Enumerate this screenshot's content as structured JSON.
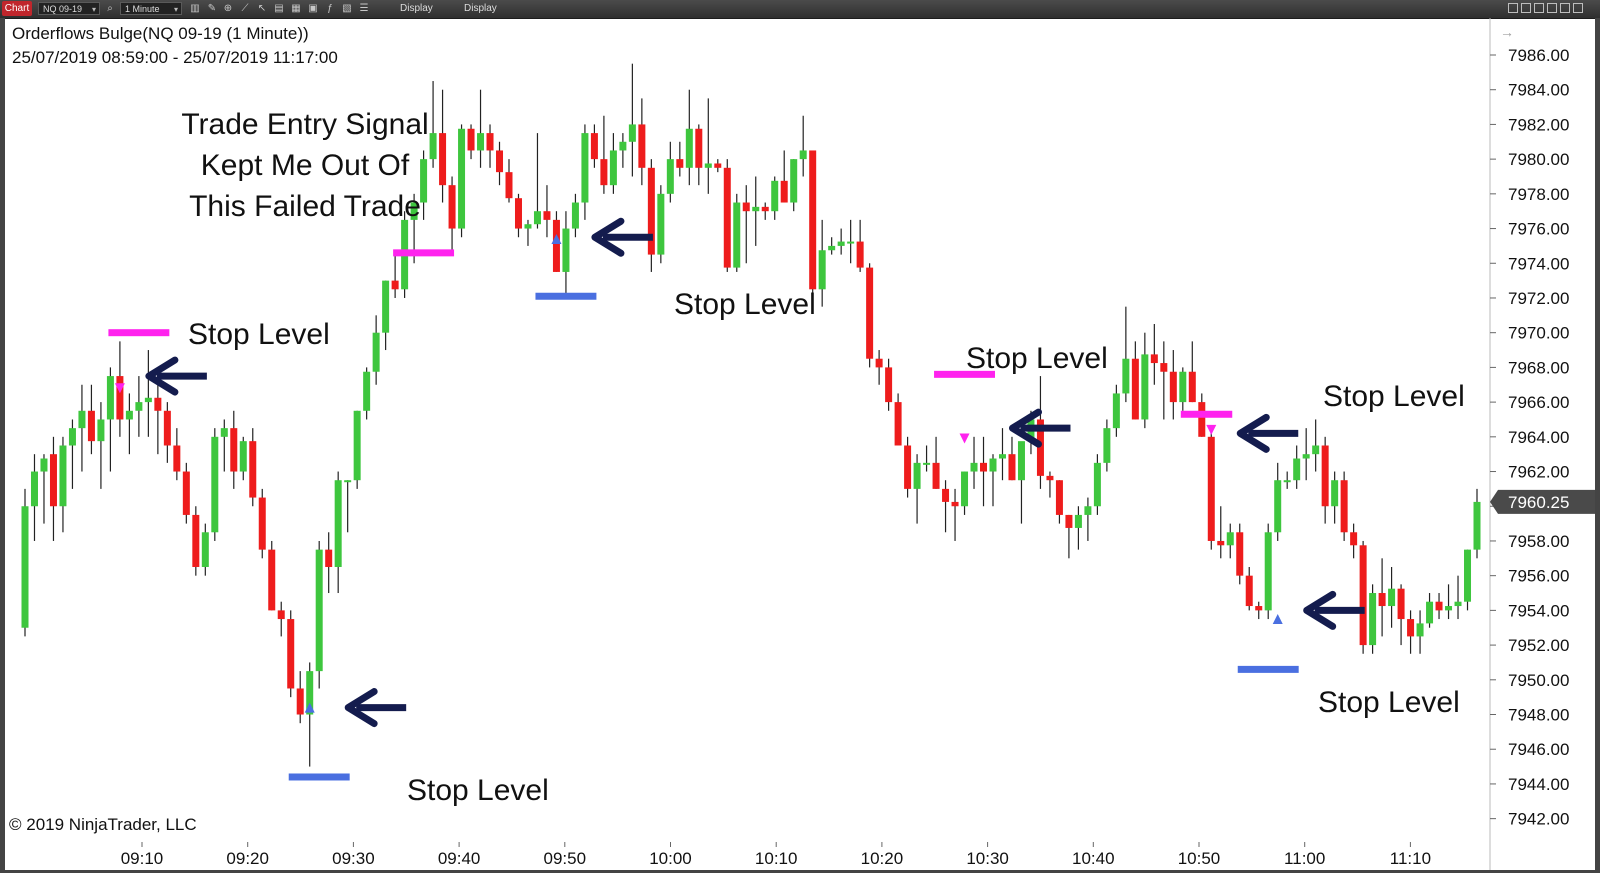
{
  "toolbar": {
    "chart_tab": "Chart",
    "instrument": "NQ 09-19",
    "interval": "1 Minute",
    "display1": "Display",
    "display2": "Display",
    "icons": [
      "search-icon",
      "bar-style-icon",
      "zoom-icon",
      "draw-icon",
      "pointer-icon",
      "cursor-icon",
      "data-box-icon",
      "strategy-icon",
      "indicator-icon",
      "properties-icon",
      "list-icon"
    ]
  },
  "chart": {
    "title": "Orderflows Bulge(NQ 09-19 (1 Minute))",
    "date_range": "25/07/2019 08:59:00 - 25/07/2019 11:17:00",
    "copyright": "© 2019 NinjaTrader, LLC",
    "annotation_lines": [
      "Trade Entry Signal",
      "Kept Me Out Of",
      "This Failed Trade"
    ],
    "last_price": "7960.25",
    "colors": {
      "up": "#3ec63e",
      "down": "#ee1c1c",
      "sell_signal": "#ff22ee",
      "buy_signal": "#4a6fe0",
      "arrow": "#141c4e",
      "price_box": "#4a4a4a"
    },
    "stop_labels": [
      {
        "id": "a",
        "text": "Stop Level"
      },
      {
        "id": "b",
        "text": "Stop Level"
      },
      {
        "id": "c",
        "text": "Stop Level"
      },
      {
        "id": "d",
        "text": "Stop Level"
      },
      {
        "id": "e",
        "text": "Stop Level"
      },
      {
        "id": "f",
        "text": "Stop Level"
      }
    ]
  },
  "chart_data": {
    "type": "candlestick",
    "ylim": [
      7942,
      7987
    ],
    "y_ticks": [
      "7986.00",
      "7984.00",
      "7982.00",
      "7980.00",
      "7978.00",
      "7976.00",
      "7974.00",
      "7972.00",
      "7970.00",
      "7968.00",
      "7966.00",
      "7964.00",
      "7962.00",
      "7960.00",
      "7958.00",
      "7956.00",
      "7954.00",
      "7952.00",
      "7950.00",
      "7948.00",
      "7946.00",
      "7944.00",
      "7942.00"
    ],
    "x_ticks": [
      "09:10",
      "09:20",
      "09:30",
      "09:40",
      "09:50",
      "10:00",
      "10:10",
      "10:20",
      "10:30",
      "10:40",
      "10:50",
      "11:00",
      "11:10"
    ],
    "candles": [
      {
        "o": 7953,
        "h": 7961,
        "l": 7952.5,
        "c": 7960
      },
      {
        "o": 7960,
        "h": 7963,
        "l": 7958,
        "c": 7962
      },
      {
        "o": 7962,
        "h": 7963,
        "l": 7959,
        "c": 7962.75
      },
      {
        "o": 7963,
        "h": 7964,
        "l": 7958,
        "c": 7960
      },
      {
        "o": 7960,
        "h": 7964,
        "l": 7958.5,
        "c": 7963.5
      },
      {
        "o": 7963.5,
        "h": 7965,
        "l": 7961,
        "c": 7964.5
      },
      {
        "o": 7964.5,
        "h": 7967,
        "l": 7962,
        "c": 7965.5
      },
      {
        "o": 7965.5,
        "h": 7967,
        "l": 7963,
        "c": 7963.75
      },
      {
        "o": 7963.75,
        "h": 7966,
        "l": 7961,
        "c": 7965
      },
      {
        "o": 7965,
        "h": 7968,
        "l": 7962,
        "c": 7967.5
      },
      {
        "o": 7967.5,
        "h": 7969.5,
        "l": 7964,
        "c": 7965
      },
      {
        "o": 7965,
        "h": 7966.5,
        "l": 7963,
        "c": 7965.5
      },
      {
        "o": 7965.5,
        "h": 7967.5,
        "l": 7964,
        "c": 7966
      },
      {
        "o": 7966,
        "h": 7969,
        "l": 7964,
        "c": 7966.25
      },
      {
        "o": 7966.25,
        "h": 7967.5,
        "l": 7963,
        "c": 7965.5
      },
      {
        "o": 7965.5,
        "h": 7966,
        "l": 7962.5,
        "c": 7963.5
      },
      {
        "o": 7963.5,
        "h": 7964.5,
        "l": 7961.5,
        "c": 7962
      },
      {
        "o": 7962,
        "h": 7962.5,
        "l": 7959,
        "c": 7959.5
      },
      {
        "o": 7959.5,
        "h": 7960,
        "l": 7956,
        "c": 7956.5
      },
      {
        "o": 7956.5,
        "h": 7959,
        "l": 7956,
        "c": 7958.5
      },
      {
        "o": 7958.5,
        "h": 7964.5,
        "l": 7958,
        "c": 7964
      },
      {
        "o": 7964,
        "h": 7965,
        "l": 7962,
        "c": 7964.5
      },
      {
        "o": 7964.5,
        "h": 7965.5,
        "l": 7961,
        "c": 7962
      },
      {
        "o": 7962,
        "h": 7964,
        "l": 7961.5,
        "c": 7963.75
      },
      {
        "o": 7963.75,
        "h": 7964.5,
        "l": 7960,
        "c": 7960.5
      },
      {
        "o": 7960.5,
        "h": 7961,
        "l": 7957,
        "c": 7957.5
      },
      {
        "o": 7957.5,
        "h": 7958,
        "l": 7954,
        "c": 7954
      },
      {
        "o": 7954,
        "h": 7954.5,
        "l": 7952.5,
        "c": 7953.5
      },
      {
        "o": 7953.5,
        "h": 7954,
        "l": 7949,
        "c": 7949.5
      },
      {
        "o": 7949.5,
        "h": 7950.5,
        "l": 7947.5,
        "c": 7948
      },
      {
        "o": 7948,
        "h": 7951,
        "l": 7945,
        "c": 7950.5
      },
      {
        "o": 7950.5,
        "h": 7958,
        "l": 7949.5,
        "c": 7957.5
      },
      {
        "o": 7957.5,
        "h": 7958.5,
        "l": 7955,
        "c": 7956.5
      },
      {
        "o": 7956.5,
        "h": 7962,
        "l": 7955,
        "c": 7961.5
      },
      {
        "o": 7961.5,
        "h": 7961.5,
        "l": 7958.5,
        "c": 7961.5
      },
      {
        "o": 7961.5,
        "h": 7965.5,
        "l": 7961,
        "c": 7965.5
      },
      {
        "o": 7965.5,
        "h": 7968,
        "l": 7965,
        "c": 7967.75
      },
      {
        "o": 7967.75,
        "h": 7971,
        "l": 7967,
        "c": 7970
      },
      {
        "o": 7970,
        "h": 7973,
        "l": 7969,
        "c": 7973
      },
      {
        "o": 7973,
        "h": 7974.5,
        "l": 7972,
        "c": 7972.5
      },
      {
        "o": 7972.5,
        "h": 7977,
        "l": 7972,
        "c": 7976.5
      },
      {
        "o": 7976.5,
        "h": 7978,
        "l": 7974,
        "c": 7977.5
      },
      {
        "o": 7977.5,
        "h": 7980.5,
        "l": 7976.5,
        "c": 7980
      },
      {
        "o": 7980,
        "h": 7984.5,
        "l": 7979.5,
        "c": 7981.5
      },
      {
        "o": 7981.5,
        "h": 7984,
        "l": 7977.5,
        "c": 7978.5
      },
      {
        "o": 7978.5,
        "h": 7979,
        "l": 7974.5,
        "c": 7976
      },
      {
        "o": 7976,
        "h": 7982,
        "l": 7975.5,
        "c": 7981.75
      },
      {
        "o": 7981.75,
        "h": 7982,
        "l": 7980,
        "c": 7980.5
      },
      {
        "o": 7980.5,
        "h": 7984,
        "l": 7979.5,
        "c": 7981.5
      },
      {
        "o": 7981.5,
        "h": 7982,
        "l": 7979.5,
        "c": 7980.5
      },
      {
        "o": 7980.5,
        "h": 7981,
        "l": 7978.5,
        "c": 7979.25
      },
      {
        "o": 7979.25,
        "h": 7980,
        "l": 7977.5,
        "c": 7977.75
      },
      {
        "o": 7977.75,
        "h": 7978,
        "l": 7975.5,
        "c": 7976
      },
      {
        "o": 7976,
        "h": 7976.5,
        "l": 7975,
        "c": 7976.25
      },
      {
        "o": 7976.25,
        "h": 7981.5,
        "l": 7976,
        "c": 7977
      },
      {
        "o": 7977,
        "h": 7978.5,
        "l": 7975.5,
        "c": 7976.5
      },
      {
        "o": 7976.5,
        "h": 7977,
        "l": 7973.5,
        "c": 7973.5
      },
      {
        "o": 7973.5,
        "h": 7977,
        "l": 7972,
        "c": 7976
      },
      {
        "o": 7976,
        "h": 7978,
        "l": 7975.5,
        "c": 7977.5
      },
      {
        "o": 7977.5,
        "h": 7982,
        "l": 7976.5,
        "c": 7981.5
      },
      {
        "o": 7981.5,
        "h": 7982,
        "l": 7979.5,
        "c": 7980
      },
      {
        "o": 7980,
        "h": 7982.5,
        "l": 7978,
        "c": 7978.5
      },
      {
        "o": 7978.5,
        "h": 7981.5,
        "l": 7978,
        "c": 7980.5
      },
      {
        "o": 7980.5,
        "h": 7981.5,
        "l": 7979.5,
        "c": 7981
      },
      {
        "o": 7981,
        "h": 7985.5,
        "l": 7979,
        "c": 7982
      },
      {
        "o": 7982,
        "h": 7983.5,
        "l": 7978.5,
        "c": 7979.5
      },
      {
        "o": 7979.5,
        "h": 7980,
        "l": 7973.5,
        "c": 7974.5
      },
      {
        "o": 7974.5,
        "h": 7978.5,
        "l": 7974,
        "c": 7978
      },
      {
        "o": 7978,
        "h": 7981,
        "l": 7977.5,
        "c": 7980
      },
      {
        "o": 7980,
        "h": 7981,
        "l": 7979,
        "c": 7979.5
      },
      {
        "o": 7979.5,
        "h": 7984,
        "l": 7978.5,
        "c": 7981.75
      },
      {
        "o": 7981.75,
        "h": 7982,
        "l": 7978.5,
        "c": 7979.5
      },
      {
        "o": 7979.5,
        "h": 7983.5,
        "l": 7978,
        "c": 7979.75
      },
      {
        "o": 7979.75,
        "h": 7980,
        "l": 7979.25,
        "c": 7979.5
      },
      {
        "o": 7979.5,
        "h": 7980,
        "l": 7973.5,
        "c": 7973.75
      },
      {
        "o": 7973.75,
        "h": 7978,
        "l": 7973.5,
        "c": 7977.5
      },
      {
        "o": 7977.5,
        "h": 7978.5,
        "l": 7974,
        "c": 7977
      },
      {
        "o": 7977,
        "h": 7979,
        "l": 7975,
        "c": 7977.25
      },
      {
        "o": 7977.25,
        "h": 7977.5,
        "l": 7976.5,
        "c": 7977
      },
      {
        "o": 7977,
        "h": 7979,
        "l": 7976.5,
        "c": 7978.75
      },
      {
        "o": 7978.75,
        "h": 7980.5,
        "l": 7977.5,
        "c": 7977.5
      },
      {
        "o": 7977.5,
        "h": 7980,
        "l": 7977,
        "c": 7980
      },
      {
        "o": 7980,
        "h": 7982.5,
        "l": 7979,
        "c": 7980.5
      },
      {
        "o": 7980.5,
        "h": 7980.5,
        "l": 7972,
        "c": 7972.5
      },
      {
        "o": 7972.5,
        "h": 7976.5,
        "l": 7971.5,
        "c": 7974.75
      },
      {
        "o": 7974.75,
        "h": 7975.5,
        "l": 7974.5,
        "c": 7975
      },
      {
        "o": 7975,
        "h": 7976,
        "l": 7974.5,
        "c": 7975.25
      },
      {
        "o": 7975.25,
        "h": 7976.5,
        "l": 7974,
        "c": 7975.25
      },
      {
        "o": 7975.25,
        "h": 7976.5,
        "l": 7973.5,
        "c": 7973.75
      },
      {
        "o": 7973.75,
        "h": 7974,
        "l": 7968,
        "c": 7968.5
      },
      {
        "o": 7968.5,
        "h": 7969,
        "l": 7967,
        "c": 7968
      },
      {
        "o": 7968,
        "h": 7968.5,
        "l": 7965.5,
        "c": 7966
      },
      {
        "o": 7966,
        "h": 7966.5,
        "l": 7963.5,
        "c": 7963.5
      },
      {
        "o": 7963.5,
        "h": 7964,
        "l": 7960.5,
        "c": 7961
      },
      {
        "o": 7961,
        "h": 7963,
        "l": 7959,
        "c": 7962.5
      },
      {
        "o": 7962.5,
        "h": 7963.5,
        "l": 7962,
        "c": 7962.5
      },
      {
        "o": 7962.5,
        "h": 7964,
        "l": 7961,
        "c": 7961
      },
      {
        "o": 7961,
        "h": 7961.5,
        "l": 7958.5,
        "c": 7960.25
      },
      {
        "o": 7960.25,
        "h": 7961,
        "l": 7958,
        "c": 7960
      },
      {
        "o": 7960,
        "h": 7962,
        "l": 7959.5,
        "c": 7962
      },
      {
        "o": 7962,
        "h": 7964,
        "l": 7961,
        "c": 7962.5
      },
      {
        "o": 7962.5,
        "h": 7964,
        "l": 7960,
        "c": 7962
      },
      {
        "o": 7962,
        "h": 7963,
        "l": 7960,
        "c": 7962.75
      },
      {
        "o": 7962.75,
        "h": 7964.5,
        "l": 7961.5,
        "c": 7963
      },
      {
        "o": 7963,
        "h": 7964,
        "l": 7961.5,
        "c": 7961.5
      },
      {
        "o": 7961.5,
        "h": 7963.5,
        "l": 7959,
        "c": 7963.75
      },
      {
        "o": 7963.75,
        "h": 7965.5,
        "l": 7963,
        "c": 7965
      },
      {
        "o": 7965,
        "h": 7967.5,
        "l": 7961,
        "c": 7961.75
      },
      {
        "o": 7961.75,
        "h": 7962,
        "l": 7960.5,
        "c": 7961.5
      },
      {
        "o": 7961.5,
        "h": 7961.5,
        "l": 7959,
        "c": 7959.5
      },
      {
        "o": 7959.5,
        "h": 7959.5,
        "l": 7957,
        "c": 7958.75
      },
      {
        "o": 7958.75,
        "h": 7960,
        "l": 7957.5,
        "c": 7959.5
      },
      {
        "o": 7959.5,
        "h": 7960.5,
        "l": 7958,
        "c": 7960
      },
      {
        "o": 7960,
        "h": 7963,
        "l": 7959.5,
        "c": 7962.5
      },
      {
        "o": 7962.5,
        "h": 7965,
        "l": 7962,
        "c": 7964.5
      },
      {
        "o": 7964.5,
        "h": 7967,
        "l": 7964,
        "c": 7966.5
      },
      {
        "o": 7966.5,
        "h": 7971.5,
        "l": 7966,
        "c": 7968.5
      },
      {
        "o": 7968.5,
        "h": 7969.5,
        "l": 7965,
        "c": 7965
      },
      {
        "o": 7965,
        "h": 7970,
        "l": 7964.5,
        "c": 7968.75
      },
      {
        "o": 7968.75,
        "h": 7970.5,
        "l": 7967,
        "c": 7968.25
      },
      {
        "o": 7968.25,
        "h": 7969.5,
        "l": 7965,
        "c": 7967.75
      },
      {
        "o": 7967.75,
        "h": 7969,
        "l": 7965,
        "c": 7966
      },
      {
        "o": 7966,
        "h": 7968,
        "l": 7965.5,
        "c": 7967.75
      },
      {
        "o": 7967.75,
        "h": 7969.5,
        "l": 7966,
        "c": 7966
      },
      {
        "o": 7966,
        "h": 7966.5,
        "l": 7964,
        "c": 7964
      },
      {
        "o": 7964,
        "h": 7964.5,
        "l": 7957.5,
        "c": 7958
      },
      {
        "o": 7958,
        "h": 7960,
        "l": 7957,
        "c": 7957.75
      },
      {
        "o": 7957.75,
        "h": 7959,
        "l": 7957,
        "c": 7958.5
      },
      {
        "o": 7958.5,
        "h": 7959,
        "l": 7955.5,
        "c": 7956
      },
      {
        "o": 7956,
        "h": 7956.5,
        "l": 7954,
        "c": 7954.25
      },
      {
        "o": 7954.25,
        "h": 7954.5,
        "l": 7953.5,
        "c": 7954
      },
      {
        "o": 7954,
        "h": 7959,
        "l": 7953.5,
        "c": 7958.5
      },
      {
        "o": 7958.5,
        "h": 7962.5,
        "l": 7958,
        "c": 7961.5
      },
      {
        "o": 7961.5,
        "h": 7962,
        "l": 7961,
        "c": 7961.5
      },
      {
        "o": 7961.5,
        "h": 7963.5,
        "l": 7961,
        "c": 7962.75
      },
      {
        "o": 7962.75,
        "h": 7964.5,
        "l": 7961.5,
        "c": 7963
      },
      {
        "o": 7963,
        "h": 7965,
        "l": 7962,
        "c": 7963.5
      },
      {
        "o": 7963.5,
        "h": 7964,
        "l": 7959,
        "c": 7960
      },
      {
        "o": 7960,
        "h": 7962,
        "l": 7959,
        "c": 7961.5
      },
      {
        "o": 7961.5,
        "h": 7962,
        "l": 7958,
        "c": 7958.5
      },
      {
        "o": 7958.5,
        "h": 7959,
        "l": 7957,
        "c": 7957.75
      },
      {
        "o": 7957.75,
        "h": 7958,
        "l": 7951.5,
        "c": 7952
      },
      {
        "o": 7952,
        "h": 7955.5,
        "l": 7951.5,
        "c": 7955
      },
      {
        "o": 7955,
        "h": 7957,
        "l": 7952.5,
        "c": 7954.25
      },
      {
        "o": 7954.25,
        "h": 7956.5,
        "l": 7953,
        "c": 7955.25
      },
      {
        "o": 7955.25,
        "h": 7955.5,
        "l": 7952,
        "c": 7953.5
      },
      {
        "o": 7953.5,
        "h": 7954,
        "l": 7951.5,
        "c": 7952.5
      },
      {
        "o": 7952.5,
        "h": 7954,
        "l": 7951.5,
        "c": 7953.25
      },
      {
        "o": 7953.25,
        "h": 7955,
        "l": 7953,
        "c": 7954.5
      },
      {
        "o": 7954.5,
        "h": 7955,
        "l": 7953.5,
        "c": 7954
      },
      {
        "o": 7954,
        "h": 7955.5,
        "l": 7953.5,
        "c": 7954.25
      },
      {
        "o": 7954.25,
        "h": 7956,
        "l": 7953.5,
        "c": 7954.5
      },
      {
        "o": 7954.5,
        "h": 7957.5,
        "l": 7954,
        "c": 7957.5
      },
      {
        "o": 7957.5,
        "h": 7961,
        "l": 7957,
        "c": 7960.25
      }
    ],
    "signals": [
      {
        "type": "sell",
        "bar": 10,
        "price": 7966.8
      },
      {
        "type": "buy",
        "bar": 30,
        "price": 7948.4
      },
      {
        "type": "buy",
        "bar": 56,
        "price": 7975.4
      },
      {
        "type": "sell",
        "bar": 99,
        "price": 7963.9
      },
      {
        "type": "sell",
        "bar": 125,
        "price": 7964.4
      },
      {
        "type": "buy",
        "bar": 132,
        "price": 7953.5
      }
    ],
    "levels": [
      {
        "type": "sell",
        "bar_from": 9,
        "bar_to": 15,
        "price": 7970
      },
      {
        "type": "sell",
        "bar_from": 39,
        "bar_to": 45,
        "price": 7974.6
      },
      {
        "type": "buy",
        "bar_from": 28,
        "bar_to": 34,
        "price": 7944.4
      },
      {
        "type": "buy",
        "bar_from": 54,
        "bar_to": 60,
        "price": 7972.1
      },
      {
        "type": "sell",
        "bar_from": 96,
        "bar_to": 102,
        "price": 7967.6
      },
      {
        "type": "sell",
        "bar_from": 122,
        "bar_to": 127,
        "price": 7965.3
      },
      {
        "type": "buy",
        "bar_from": 128,
        "bar_to": 134,
        "price": 7950.6
      }
    ],
    "arrows": [
      {
        "bar": 12,
        "price": 7967.5
      },
      {
        "bar": 33,
        "price": 7948.4
      },
      {
        "bar": 59,
        "price": 7975.5
      },
      {
        "bar": 103,
        "price": 7964.5
      },
      {
        "bar": 127,
        "price": 7964.2
      },
      {
        "bar": 134,
        "price": 7954
      }
    ]
  }
}
